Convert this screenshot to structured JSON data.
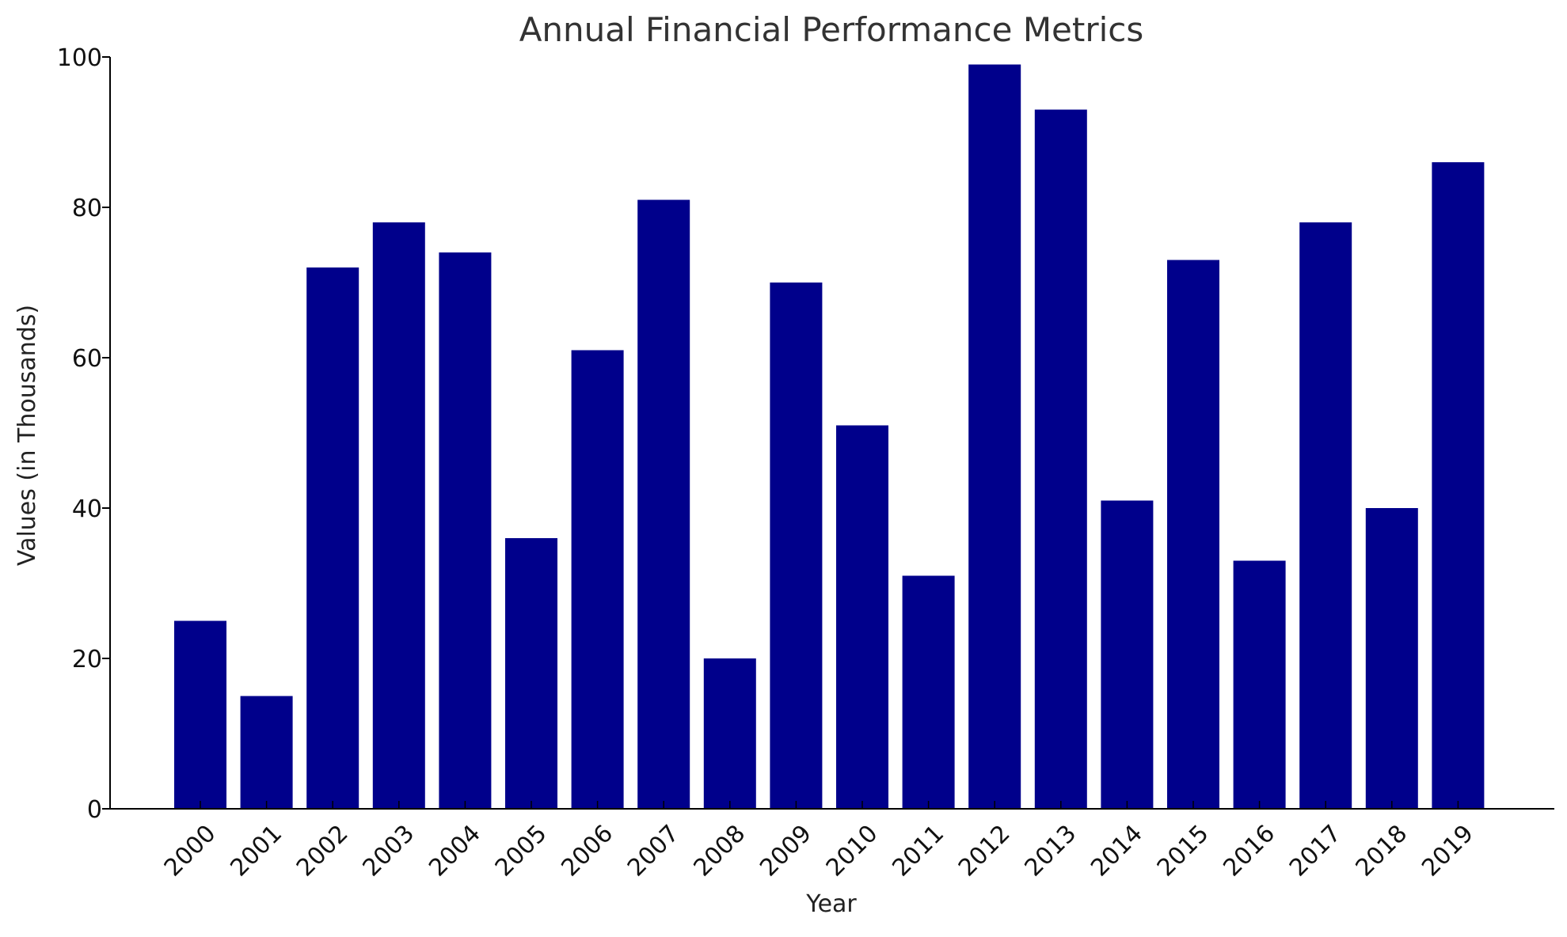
{
  "chart_data": {
    "type": "bar",
    "title": "Annual Financial Performance Metrics",
    "xlabel": "Year",
    "ylabel": "Values (in Thousands)",
    "categories": [
      "2000",
      "2001",
      "2002",
      "2003",
      "2004",
      "2005",
      "2006",
      "2007",
      "2008",
      "2009",
      "2010",
      "2011",
      "2012",
      "2013",
      "2014",
      "2015",
      "2016",
      "2017",
      "2018",
      "2019"
    ],
    "values": [
      25,
      15,
      72,
      78,
      74,
      36,
      61,
      81,
      20,
      70,
      51,
      31,
      99,
      93,
      41,
      73,
      33,
      78,
      40,
      86
    ],
    "ylim": [
      0,
      100
    ],
    "yticks": [
      "0",
      "20",
      "40",
      "60",
      "80",
      "100"
    ],
    "grid": false,
    "legend": "none",
    "bar_color": "#00008b",
    "axis_color": "#000000"
  }
}
